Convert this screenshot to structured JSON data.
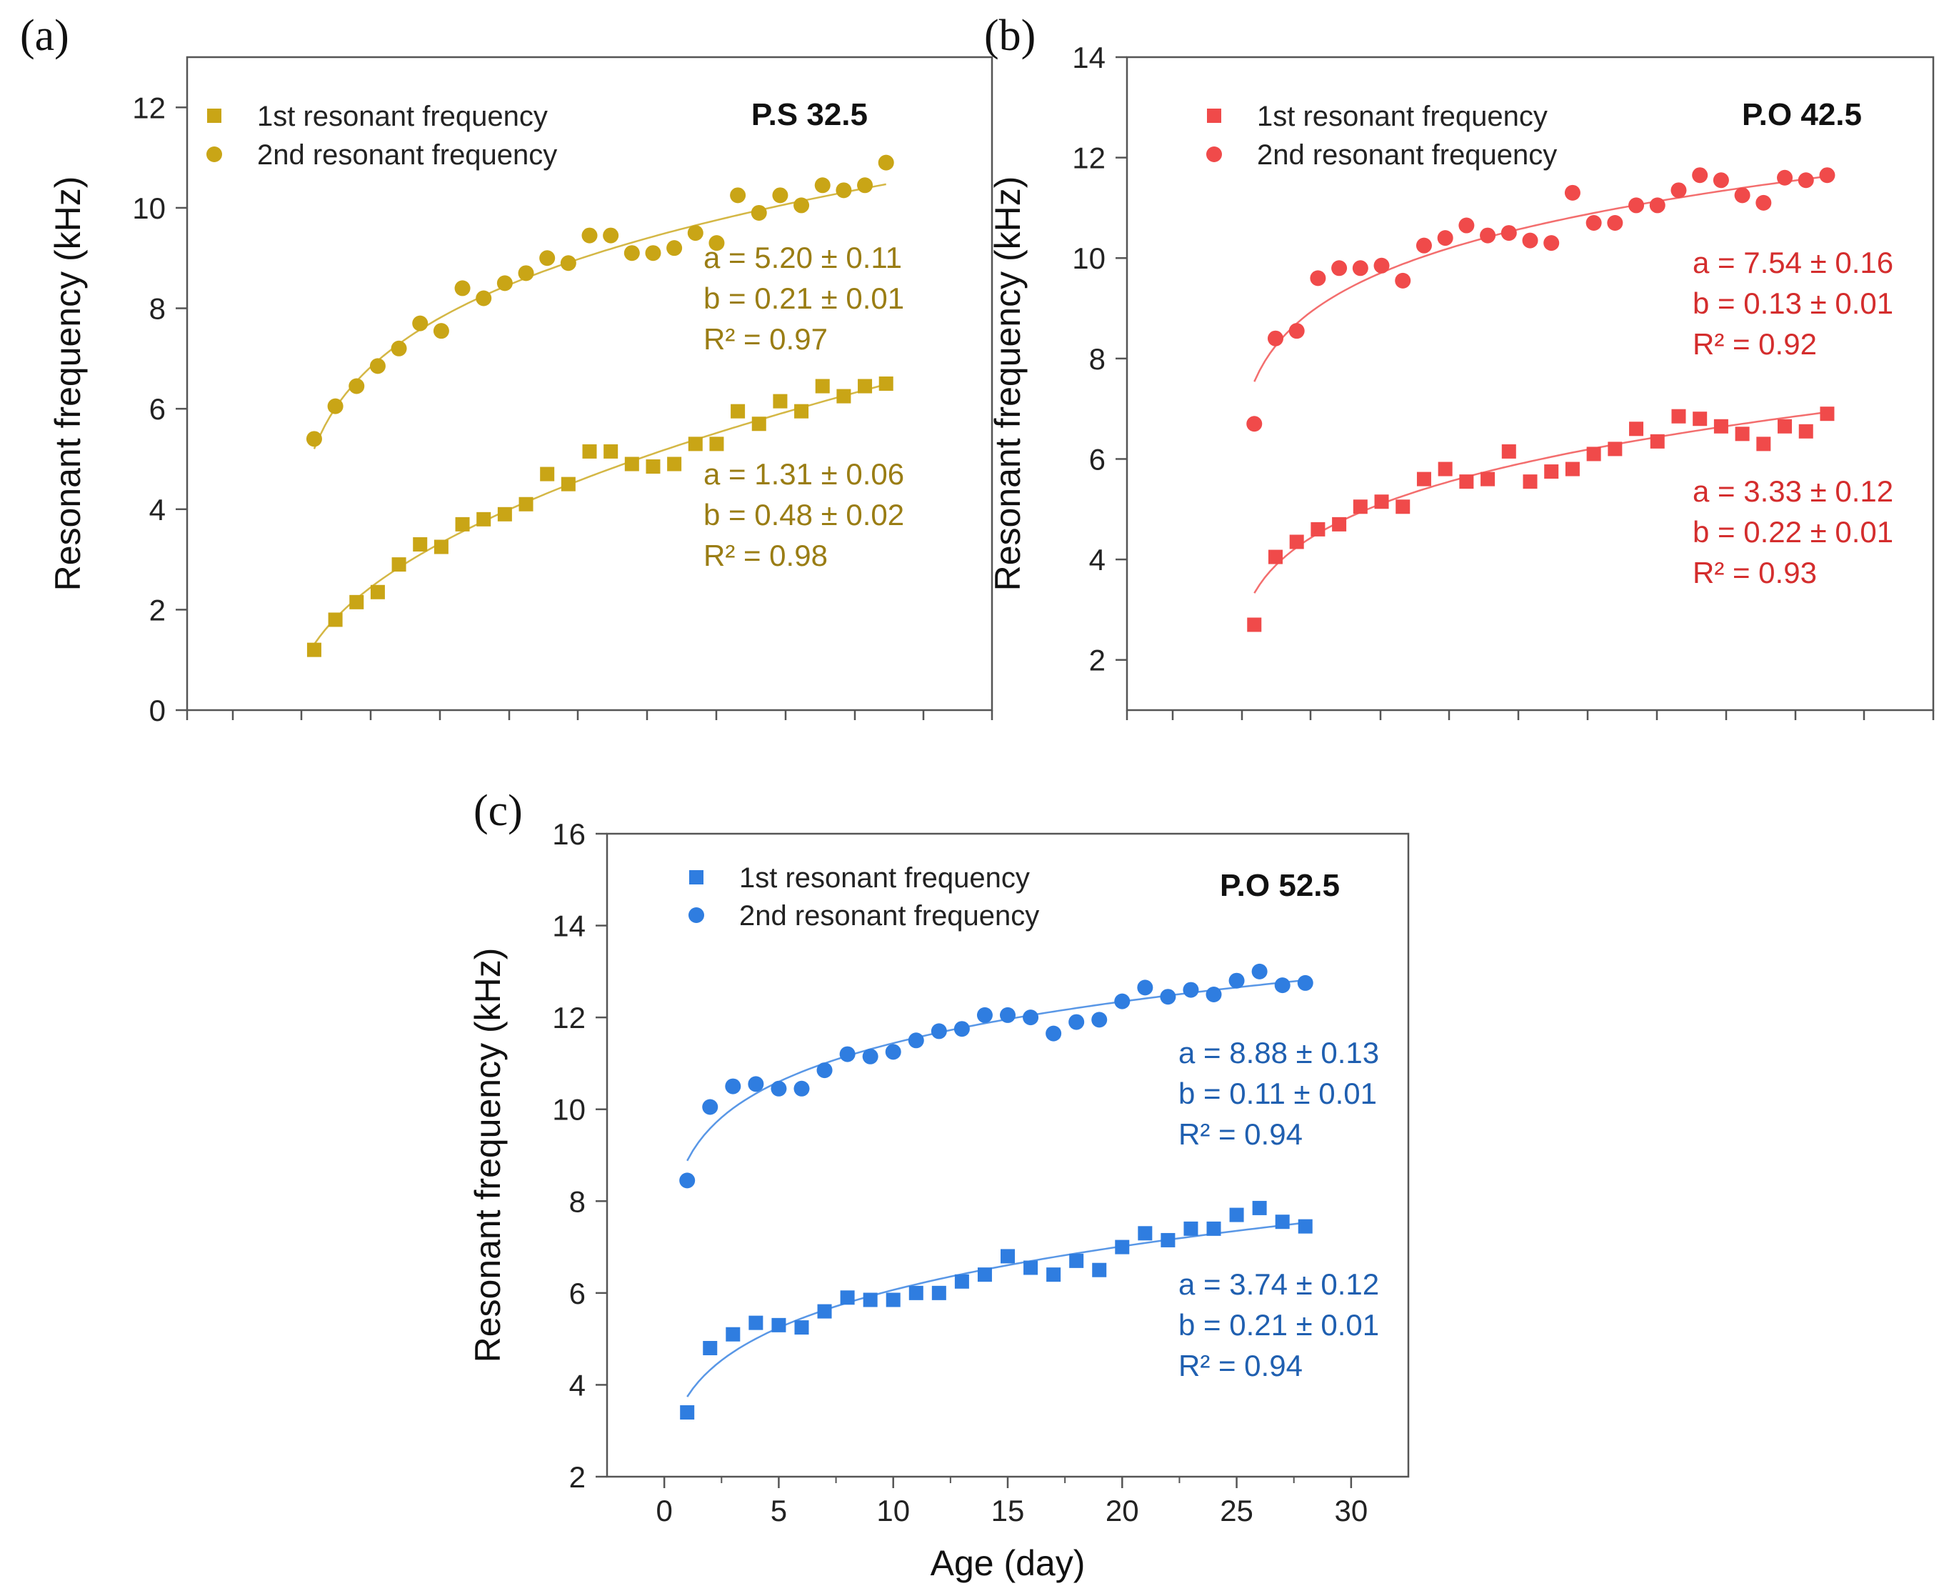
{
  "chart_data": [
    {
      "type": "scatter",
      "panel_label": "(a)",
      "title": "P.S 32.5",
      "xlabel": "",
      "ylabel": "Resonant frequency (kHz)",
      "xlim": [
        -5,
        33
      ],
      "ylim": [
        0,
        13
      ],
      "yticks": [
        "0",
        "2",
        "4",
        "6",
        "8",
        "10",
        "12"
      ],
      "xticks": [],
      "color": "#c9a516",
      "text_color": "#9a7d14",
      "series": [
        {
          "name": "1st resonant frequency",
          "marker": "square",
          "x": [
            1,
            2,
            3,
            4,
            5,
            6,
            7,
            8,
            9,
            10,
            11,
            12,
            13,
            14,
            15,
            16,
            17,
            18,
            19,
            20,
            21,
            22,
            23,
            24,
            25,
            26,
            27,
            28
          ],
          "y": [
            1.2,
            1.8,
            2.15,
            2.35,
            2.9,
            3.3,
            3.25,
            3.7,
            3.8,
            3.9,
            4.1,
            4.7,
            4.5,
            5.15,
            5.15,
            4.9,
            4.85,
            4.9,
            5.3,
            5.3,
            5.95,
            5.7,
            6.15,
            5.95,
            6.45,
            6.25,
            6.45,
            6.5
          ],
          "fit": {
            "a": 1.31,
            "b": 0.48,
            "a_text": "a = 1.31 ± 0.06",
            "b_text": "b = 0.48 ± 0.02",
            "r2_value": "R² = 0.98"
          }
        },
        {
          "name": "2nd resonant frequency",
          "marker": "circle",
          "x": [
            1,
            2,
            3,
            4,
            5,
            6,
            7,
            8,
            9,
            10,
            11,
            12,
            13,
            14,
            15,
            16,
            17,
            18,
            19,
            20,
            21,
            22,
            23,
            24,
            25,
            26,
            27,
            28
          ],
          "y": [
            5.4,
            6.05,
            6.45,
            6.85,
            7.2,
            7.7,
            7.55,
            8.4,
            8.2,
            8.5,
            8.7,
            9.0,
            8.9,
            9.45,
            9.45,
            9.1,
            9.1,
            9.2,
            9.5,
            9.3,
            10.25,
            9.9,
            10.25,
            10.05,
            10.45,
            10.35,
            10.45,
            10.9
          ],
          "fit": {
            "a": 5.2,
            "b": 0.21,
            "a_text": "a = 5.20 ± 0.11",
            "b_text": "b = 0.21 ± 0.01",
            "r2_value": "R² = 0.97"
          }
        }
      ]
    },
    {
      "type": "scatter",
      "panel_label": "(b)",
      "title": "P.O 42.5",
      "xlabel": "",
      "ylabel": "Resonant frequency (kHz)",
      "xlim": [
        -5,
        33
      ],
      "ylim": [
        1,
        14
      ],
      "yticks": [
        "2",
        "4",
        "6",
        "8",
        "10",
        "12",
        "14"
      ],
      "xticks": [],
      "color": "#f04a4a",
      "text_color": "#d42d2d",
      "series": [
        {
          "name": "1st resonant frequency",
          "marker": "square",
          "x": [
            1,
            2,
            3,
            4,
            5,
            6,
            7,
            8,
            9,
            10,
            11,
            12,
            13,
            14,
            15,
            16,
            17,
            18,
            19,
            20,
            21,
            22,
            23,
            24,
            25,
            26,
            27,
            28
          ],
          "y": [
            2.7,
            4.05,
            4.35,
            4.6,
            4.7,
            5.05,
            5.15,
            5.05,
            5.6,
            5.8,
            5.55,
            5.6,
            6.15,
            5.55,
            5.75,
            5.8,
            6.1,
            6.2,
            6.6,
            6.35,
            6.85,
            6.8,
            6.65,
            6.5,
            6.3,
            6.65,
            6.55,
            6.9
          ],
          "fit": {
            "a": 3.33,
            "b": 0.22,
            "a_text": "a = 3.33 ± 0.12",
            "b_text": "b = 0.22 ± 0.01",
            "r2_value": "R² = 0.93"
          }
        },
        {
          "name": "2nd resonant frequency",
          "marker": "circle",
          "x": [
            1,
            2,
            3,
            4,
            5,
            6,
            7,
            8,
            9,
            10,
            11,
            12,
            13,
            14,
            15,
            16,
            17,
            18,
            19,
            20,
            21,
            22,
            23,
            24,
            25,
            26,
            27,
            28
          ],
          "y": [
            6.7,
            8.4,
            8.55,
            9.6,
            9.8,
            9.8,
            9.85,
            9.55,
            10.25,
            10.4,
            10.65,
            10.45,
            10.5,
            10.35,
            10.3,
            11.3,
            10.7,
            10.7,
            11.05,
            11.05,
            11.35,
            11.65,
            11.55,
            11.25,
            11.1,
            11.6,
            11.55,
            11.65
          ],
          "fit": {
            "a": 7.54,
            "b": 0.13,
            "a_text": "a = 7.54 ± 0.16",
            "b_text": "b = 0.13 ± 0.01",
            "r2_value": "R² = 0.92"
          }
        }
      ]
    },
    {
      "type": "scatter",
      "panel_label": "(c)",
      "title": "P.O 52.5",
      "xlabel": "Age (day)",
      "ylabel": "Resonant frequency (kHz)",
      "xlim": [
        -2.5,
        32.5
      ],
      "ylim": [
        2,
        16
      ],
      "yticks": [
        "2",
        "4",
        "6",
        "8",
        "10",
        "12",
        "14",
        "16"
      ],
      "xticks": [
        "0",
        "5",
        "10",
        "15",
        "20",
        "25",
        "30"
      ],
      "color": "#2f7de0",
      "text_color": "#1f5fb0",
      "series": [
        {
          "name": "1st resonant frequency",
          "marker": "square",
          "x": [
            1,
            2,
            3,
            4,
            5,
            6,
            7,
            8,
            9,
            10,
            11,
            12,
            13,
            14,
            15,
            16,
            17,
            18,
            19,
            20,
            21,
            22,
            23,
            24,
            25,
            26,
            27,
            28
          ],
          "y": [
            3.4,
            4.8,
            5.1,
            5.35,
            5.3,
            5.25,
            5.6,
            5.9,
            5.85,
            5.85,
            6.0,
            6.0,
            6.25,
            6.4,
            6.8,
            6.55,
            6.4,
            6.7,
            6.5,
            7.0,
            7.3,
            7.15,
            7.4,
            7.4,
            7.7,
            7.85,
            7.55,
            7.45
          ],
          "fit": {
            "a": 3.74,
            "b": 0.21,
            "a_text": "a = 3.74 ± 0.12",
            "b_text": "b = 0.21 ± 0.01",
            "r2_value": "R² = 0.94"
          }
        },
        {
          "name": "2nd resonant frequency",
          "marker": "circle",
          "x": [
            1,
            2,
            3,
            4,
            5,
            6,
            7,
            8,
            9,
            10,
            11,
            12,
            13,
            14,
            15,
            16,
            17,
            18,
            19,
            20,
            21,
            22,
            23,
            24,
            25,
            26,
            27,
            28
          ],
          "y": [
            8.45,
            10.05,
            10.5,
            10.55,
            10.45,
            10.45,
            10.85,
            11.2,
            11.15,
            11.25,
            11.5,
            11.7,
            11.75,
            12.05,
            12.05,
            12.0,
            11.65,
            11.9,
            11.95,
            12.35,
            12.65,
            12.45,
            12.6,
            12.5,
            12.8,
            13.0,
            12.7,
            12.75
          ],
          "fit": {
            "a": 8.88,
            "b": 0.11,
            "a_text": "a = 8.88 ± 0.13",
            "b_text": "b = 0.11 ± 0.01",
            "r2_value": "R² = 0.94"
          }
        }
      ]
    }
  ]
}
